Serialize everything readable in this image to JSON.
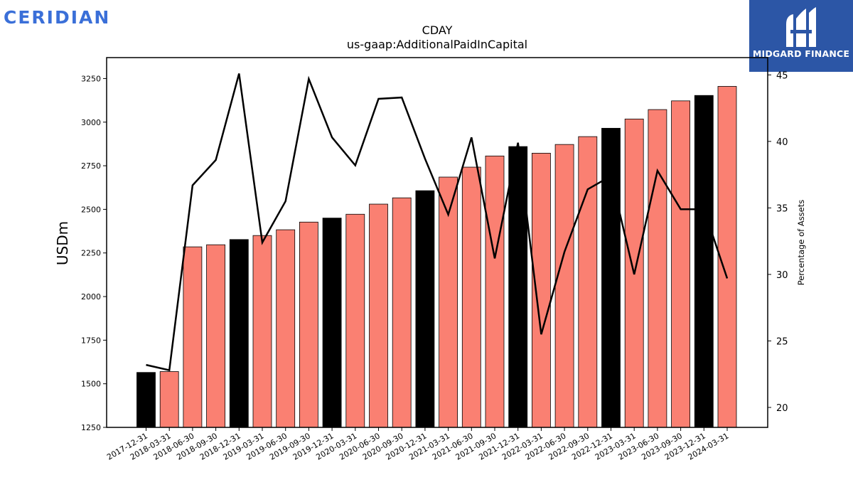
{
  "brand": {
    "left_logo": "CERIDIAN",
    "right_logo": "MIDGARD FINANCE"
  },
  "colors": {
    "bar_default": "#fa8072",
    "bar_year_end": "#000000",
    "line": "#000000",
    "logo_bg": "#2c56a6",
    "logo_left": "#3a6fd8"
  },
  "chart_data": {
    "type": "bar",
    "title": "CDAY",
    "subtitle": "us-gaap:AdditionalPaidInCapital",
    "ylabel": "USDm",
    "y2label": "Percentage of Assets",
    "ylim": [
      1250,
      3370
    ],
    "y2lim": [
      18.5,
      46.3
    ],
    "yticks": [
      1250,
      1500,
      1750,
      2000,
      2250,
      2500,
      2750,
      3000,
      3250
    ],
    "y2ticks": [
      20,
      25,
      30,
      35,
      40,
      45
    ],
    "categories": [
      "2017-12-31",
      "2018-03-31",
      "2018-06-30",
      "2018-09-30",
      "2018-12-31",
      "2019-03-31",
      "2019-06-30",
      "2019-09-30",
      "2019-12-31",
      "2020-03-31",
      "2020-06-30",
      "2020-09-30",
      "2020-12-31",
      "2021-03-31",
      "2021-06-30",
      "2021-09-30",
      "2021-12-31",
      "2022-03-31",
      "2022-06-30",
      "2022-09-30",
      "2022-12-31",
      "2023-03-31",
      "2023-06-30",
      "2023-09-30",
      "2023-12-31",
      "2024-03-31"
    ],
    "series": [
      {
        "values": [
          1565,
          1570,
          2285,
          2297,
          2327,
          2350,
          2383,
          2427,
          2450,
          2472,
          2530,
          2566,
          2607,
          2685,
          2742,
          2806,
          2860,
          2822,
          2872,
          2917,
          2965,
          3018,
          3072,
          3122,
          3153,
          3205
        ]
      },
      {
        "axis": "right",
        "values": [
          23.2,
          22.8,
          36.7,
          38.6,
          45.1,
          32.4,
          35.5,
          44.7,
          40.3,
          38.2,
          43.2,
          43.3,
          38.7,
          34.5,
          40.3,
          31.2,
          39.9,
          25.5,
          31.7,
          36.4,
          37.4,
          30.0,
          37.8,
          34.9,
          34.9,
          29.7
        ]
      }
    ],
    "year_end_highlight": [
      true,
      false,
      false,
      false,
      true,
      false,
      false,
      false,
      true,
      false,
      false,
      false,
      true,
      false,
      false,
      false,
      true,
      false,
      false,
      false,
      true,
      false,
      false,
      false,
      true,
      false
    ]
  }
}
